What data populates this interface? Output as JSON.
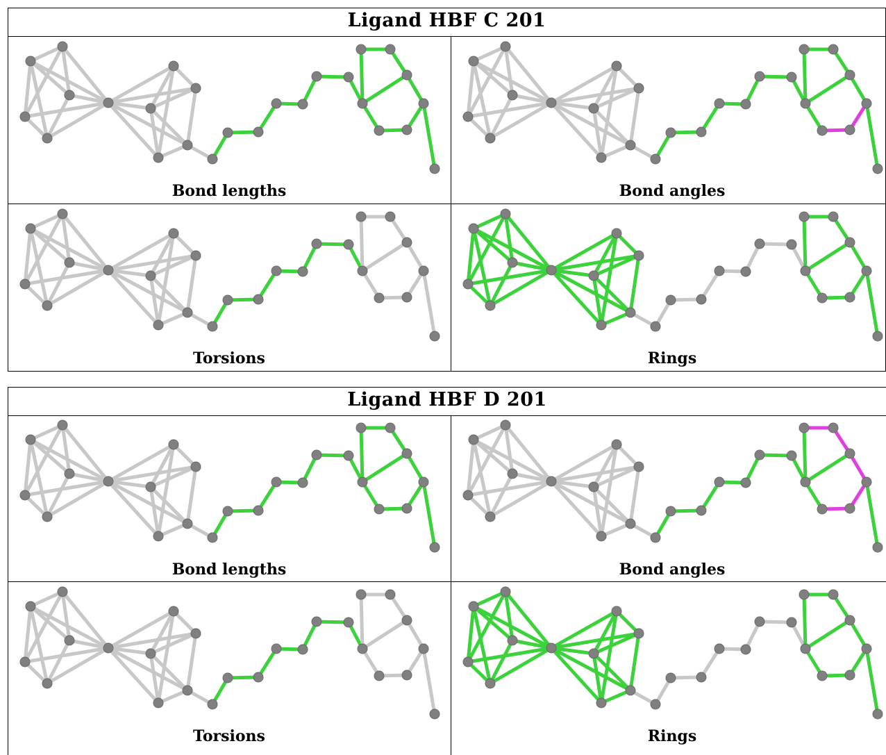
{
  "panels": [
    {
      "title": "Ligand HBF C 201",
      "cells": [
        {
          "caption": "Bond lengths",
          "highlight": "chain_and_ring",
          "magenta": []
        },
        {
          "caption": "Bond angles",
          "highlight": "chain_and_ring",
          "magenta": [
            [
              21,
              22
            ],
            [
              22,
              23
            ],
            [
              20,
              25
            ],
            [
              25,
              24
            ]
          ]
        },
        {
          "caption": "Torsions",
          "highlight": "chain_only",
          "magenta": []
        },
        {
          "caption": "Rings",
          "highlight": "cages_and_ring",
          "magenta": []
        }
      ]
    },
    {
      "title": "Ligand HBF D 201",
      "cells": [
        {
          "caption": "Bond lengths",
          "highlight": "chain_and_ring",
          "magenta": []
        },
        {
          "caption": "Bond angles",
          "highlight": "chain_and_ring",
          "magenta": [
            [
              18,
              19
            ],
            [
              19,
              20
            ],
            [
              20,
              21
            ],
            [
              21,
              22
            ],
            [
              22,
              23
            ],
            [
              23,
              20
            ]
          ]
        },
        {
          "caption": "Torsions",
          "highlight": "chain_only",
          "magenta": []
        },
        {
          "caption": "Rings",
          "highlight": "cages_and_ring",
          "magenta": []
        }
      ]
    }
  ],
  "colors": {
    "atom": "#808080",
    "bond_default": "#c8c8c8",
    "bond_highlight": "#3cd23c",
    "bond_magenta": "#e040e0",
    "border": "#000000"
  }
}
